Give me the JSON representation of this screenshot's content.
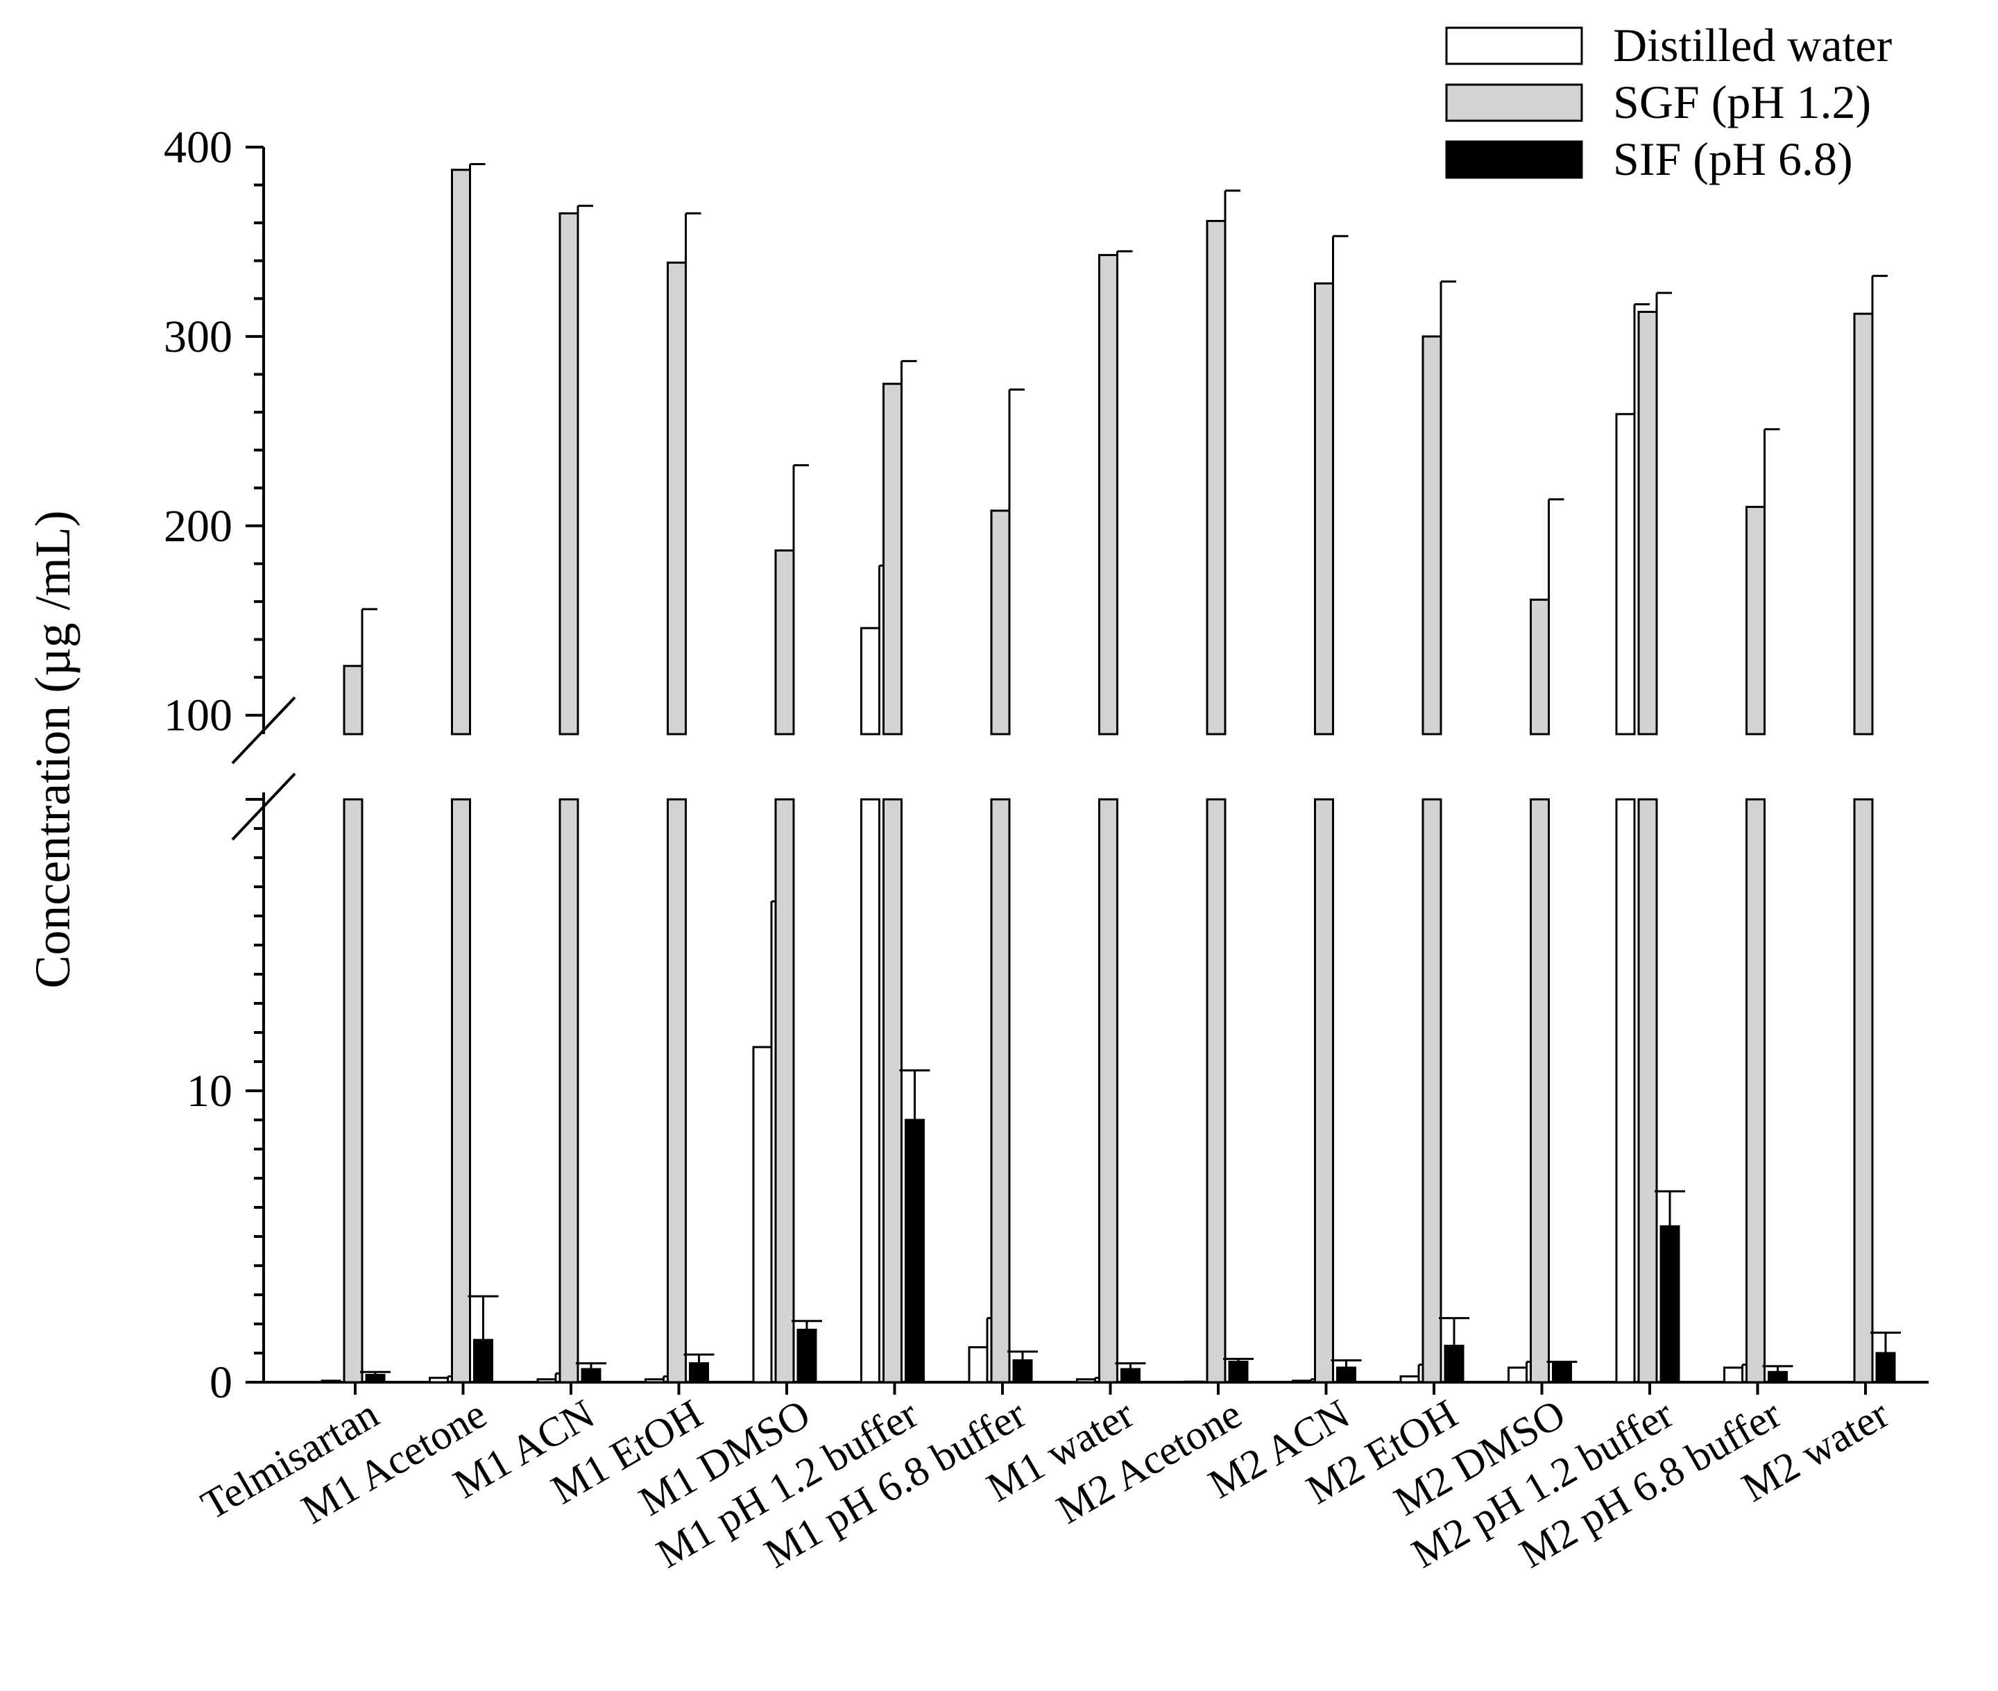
{
  "chart_data": {
    "type": "bar",
    "title": "",
    "xlabel": "",
    "ylabel": "Concentration (µg /mL)",
    "y_axis_break": {
      "lower_range": [
        0,
        20
      ],
      "upper_range": [
        90,
        400
      ],
      "lower_ticks": [
        0,
        10
      ],
      "upper_ticks": [
        100,
        200,
        300,
        400
      ]
    },
    "legend_position": "top-right",
    "categories": [
      "Telmisartan",
      "M1 Acetone",
      "M1 ACN",
      "M1 EtOH",
      "M1 DMSO",
      "M1 pH 1.2 buffer",
      "M1 pH 6.8 buffer",
      "M1 water",
      "M2 Acetone",
      "M2 ACN",
      "M2 EtOH",
      "M2 DMSO",
      "M2 pH 1.2 buffer",
      "M2 pH 6.8 buffer",
      "M2 water"
    ],
    "series": [
      {
        "name": "Distilled water",
        "color": "#ffffff",
        "values": [
          0.05,
          0.15,
          0.1,
          0.1,
          11.5,
          146,
          1.2,
          0.1,
          0.02,
          0.05,
          0.2,
          0.5,
          259,
          0.5,
          0.0
        ],
        "errors": [
          0.0,
          0.05,
          0.2,
          0.1,
          5.0,
          33,
          1.0,
          0.05,
          0.0,
          0.05,
          0.4,
          0.2,
          58,
          0.1,
          0.0
        ]
      },
      {
        "name": "SGF (pH 1.2)",
        "color": "#d3d3d3",
        "values": [
          126,
          388,
          365,
          339,
          187,
          275,
          208,
          343,
          361,
          328,
          300,
          161,
          313,
          210,
          312
        ],
        "errors": [
          30,
          3,
          4,
          26,
          45,
          12,
          64,
          2,
          16,
          25,
          29,
          53,
          10,
          41,
          20
        ]
      },
      {
        "name": "SIF (pH 6.8)",
        "color": "#000000",
        "values": [
          0.25,
          1.45,
          0.45,
          0.65,
          1.8,
          9.0,
          0.75,
          0.45,
          0.7,
          0.5,
          1.25,
          0.65,
          5.35,
          0.35,
          1.0
        ],
        "errors": [
          0.1,
          1.5,
          0.2,
          0.3,
          0.3,
          1.7,
          0.3,
          0.2,
          0.1,
          0.25,
          0.95,
          0.05,
          1.2,
          0.2,
          0.7
        ]
      }
    ]
  }
}
